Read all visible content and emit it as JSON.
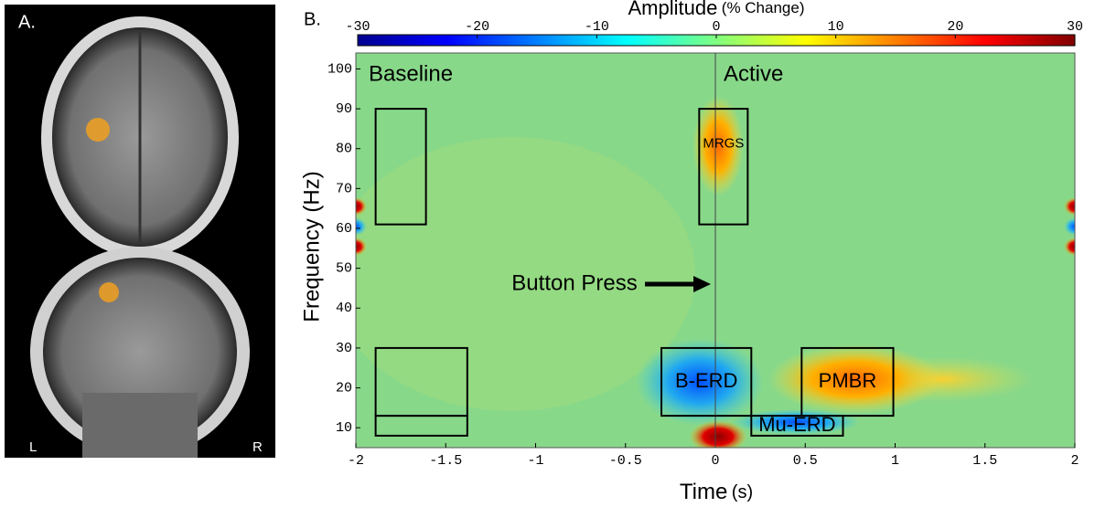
{
  "panel_a": {
    "label": "A.",
    "left": "L",
    "right": "R"
  },
  "chart_data": {
    "type": "spectrogram",
    "panel_label": "B.",
    "colorbar_title": "Amplitude",
    "colorbar_unit": "(% Change)",
    "clim": [
      -30,
      30
    ],
    "cticks": [
      -30,
      -20,
      -10,
      0,
      10,
      20,
      30
    ],
    "x_label": "Time",
    "x_unit": "(s)",
    "y_label": "Frequency (Hz)",
    "xlim": [
      -2,
      2
    ],
    "xticks": [
      -2,
      -1.5,
      -1,
      -0.5,
      0,
      0.5,
      1,
      1.5,
      2
    ],
    "ylim": [
      5,
      104
    ],
    "yticks": [
      10,
      20,
      30,
      40,
      50,
      60,
      70,
      80,
      90,
      100
    ],
    "annotations": [
      "Baseline",
      "Active",
      "Button Press"
    ],
    "regions": [
      {
        "x": [
          -1.89,
          -1.61
        ],
        "y": [
          61,
          90
        ]
      },
      {
        "x": [
          -1.89,
          -1.38
        ],
        "y": [
          13,
          30
        ]
      },
      {
        "x": [
          -1.89,
          -1.38
        ],
        "y": [
          8,
          13
        ]
      },
      {
        "x": [
          -0.09,
          0.18
        ],
        "y": [
          61,
          90
        ],
        "label": "MRGS"
      },
      {
        "x": [
          -0.3,
          0.2
        ],
        "y": [
          13,
          30
        ],
        "label": "B-ERD"
      },
      {
        "x": [
          0.2,
          0.71
        ],
        "y": [
          8,
          13
        ],
        "label": "Mu-ERD"
      },
      {
        "x": [
          0.48,
          0.99
        ],
        "y": [
          13,
          30
        ],
        "label": "PMBR"
      }
    ]
  }
}
